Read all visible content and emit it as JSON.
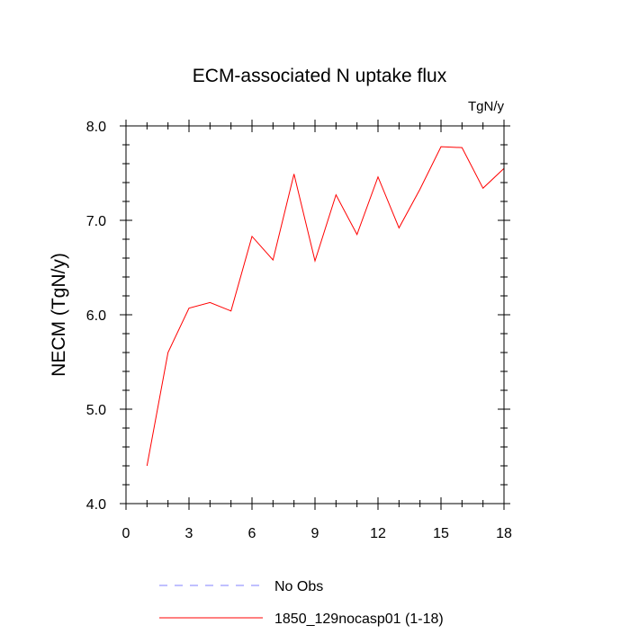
{
  "chart_data": {
    "type": "line",
    "title": "ECM-associated N uptake flux",
    "units_label": "TgN/y",
    "ylabel": "NECM  (TgN/y)",
    "xlabel": "",
    "xlim": [
      0,
      18
    ],
    "ylim": [
      4.0,
      8.0
    ],
    "x_ticks": [
      0,
      3,
      6,
      9,
      12,
      15,
      18
    ],
    "x_tick_labels": [
      "0",
      "3",
      "6",
      "9",
      "12",
      "15",
      "18"
    ],
    "y_ticks": [
      4.0,
      5.0,
      6.0,
      7.0,
      8.0
    ],
    "y_tick_labels": [
      "4.0",
      "5.0",
      "6.0",
      "7.0",
      "8.0"
    ],
    "grid": false,
    "legend_position": "bottom",
    "series": [
      {
        "name": "1850_129nocasp01 (1-18)",
        "color": "#ff0000",
        "line_style": "solid",
        "x": [
          1,
          2,
          3,
          4,
          5,
          6,
          7,
          8,
          9,
          10,
          11,
          12,
          13,
          14,
          15,
          16,
          17,
          18
        ],
        "y": [
          4.4,
          5.6,
          6.07,
          6.13,
          6.04,
          6.83,
          6.58,
          7.49,
          6.57,
          7.27,
          6.85,
          7.46,
          6.92,
          7.33,
          7.78,
          7.77,
          7.34,
          7.55
        ]
      }
    ],
    "legend": [
      {
        "label": "No Obs",
        "color": "#8080ff",
        "line_style": "dashed"
      },
      {
        "label": "1850_129nocasp01 (1-18)",
        "color": "#ff0000",
        "line_style": "solid"
      }
    ]
  }
}
